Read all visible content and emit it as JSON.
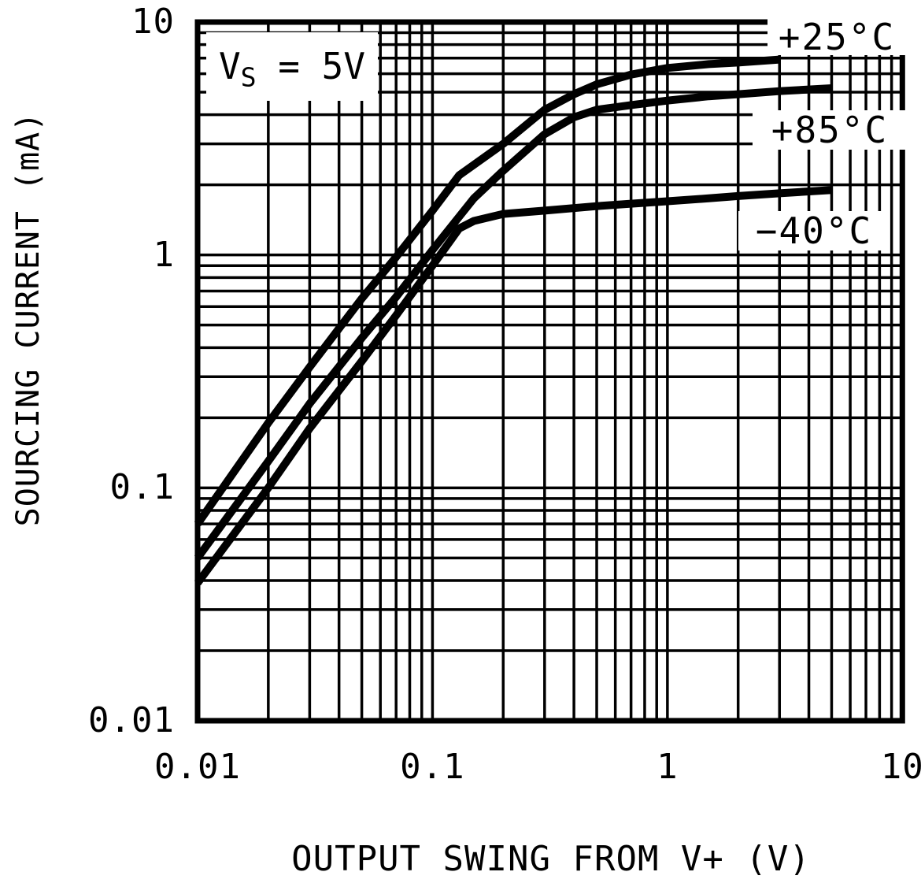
{
  "figure": {
    "background_color": "#ffffff",
    "foreground_color": "#000000"
  },
  "chart_data": {
    "type": "line",
    "title": "",
    "xlabel": "OUTPUT SWING FROM V+ (V)",
    "ylabel": "SOURCING CURRENT (mA)",
    "x_scale": "log",
    "y_scale": "log",
    "xlim": [
      0.01,
      10
    ],
    "ylim": [
      0.01,
      10
    ],
    "grid": "on-log-minor-both-axes",
    "legend_position": "labels-at-curve-ends",
    "annotation": {
      "prefix": "V",
      "sub": "S",
      "rest": " = 5V"
    },
    "x_ticks": [
      {
        "label": "0.01",
        "value": 0.01
      },
      {
        "label": "0.1",
        "value": 0.1
      },
      {
        "label": "1",
        "value": 1
      },
      {
        "label": "10",
        "value": 10
      }
    ],
    "y_ticks": [
      {
        "label": "10",
        "value": 10
      },
      {
        "label": "1",
        "value": 1
      },
      {
        "label": "0.1",
        "value": 0.1
      },
      {
        "label": "0.01",
        "value": 0.01
      }
    ],
    "series": [
      {
        "name": "+25°C",
        "color": "#000000",
        "points": [
          [
            0.01,
            0.07
          ],
          [
            0.02,
            0.19
          ],
          [
            0.03,
            0.33
          ],
          [
            0.05,
            0.65
          ],
          [
            0.07,
            0.98
          ],
          [
            0.1,
            1.55
          ],
          [
            0.13,
            2.2
          ],
          [
            0.2,
            3.0
          ],
          [
            0.3,
            4.2
          ],
          [
            0.4,
            4.9
          ],
          [
            0.5,
            5.4
          ],
          [
            0.7,
            5.95
          ],
          [
            1.0,
            6.35
          ],
          [
            1.5,
            6.6
          ],
          [
            2.0,
            6.7
          ],
          [
            3.0,
            6.9
          ]
        ]
      },
      {
        "name": "+85°C",
        "color": "#000000",
        "points": [
          [
            0.01,
            0.05
          ],
          [
            0.02,
            0.13
          ],
          [
            0.03,
            0.23
          ],
          [
            0.05,
            0.44
          ],
          [
            0.07,
            0.66
          ],
          [
            0.1,
            1.05
          ],
          [
            0.15,
            1.75
          ],
          [
            0.2,
            2.3
          ],
          [
            0.3,
            3.3
          ],
          [
            0.4,
            3.9
          ],
          [
            0.5,
            4.2
          ],
          [
            0.7,
            4.4
          ],
          [
            1.0,
            4.6
          ],
          [
            1.5,
            4.8
          ],
          [
            2.0,
            4.9
          ],
          [
            3.0,
            5.05
          ],
          [
            5.0,
            5.2
          ]
        ]
      },
      {
        "name": "−40°C",
        "color": "#000000",
        "points": [
          [
            0.01,
            0.039
          ],
          [
            0.02,
            0.1
          ],
          [
            0.03,
            0.18
          ],
          [
            0.05,
            0.35
          ],
          [
            0.07,
            0.55
          ],
          [
            0.1,
            0.9
          ],
          [
            0.13,
            1.3
          ],
          [
            0.15,
            1.4
          ],
          [
            0.2,
            1.5
          ],
          [
            0.3,
            1.55
          ],
          [
            0.5,
            1.62
          ],
          [
            0.7,
            1.66
          ],
          [
            1.0,
            1.7
          ],
          [
            1.5,
            1.75
          ],
          [
            2.0,
            1.79
          ],
          [
            3.0,
            1.84
          ],
          [
            5.0,
            1.9
          ]
        ]
      }
    ],
    "plot_style": {
      "curve_stroke_px": 10,
      "grid_stroke_px": 3.5,
      "border_stroke_px": 7
    }
  }
}
